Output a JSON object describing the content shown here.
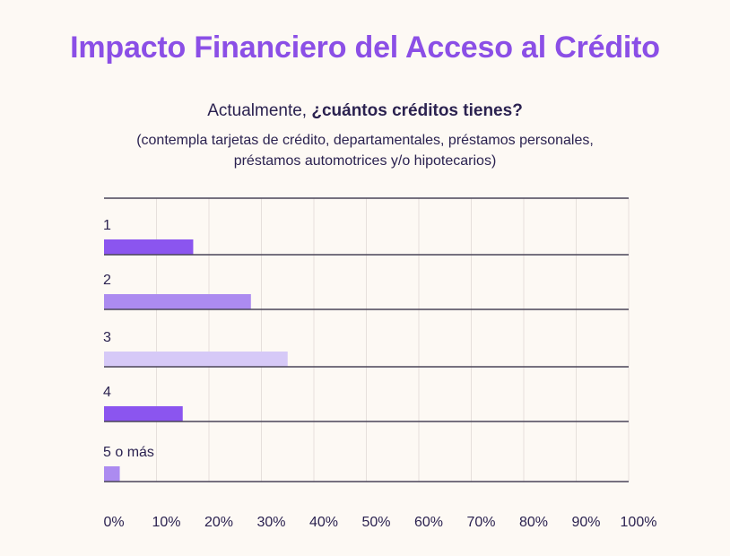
{
  "title": "Impacto Financiero del Acceso al Crédito",
  "question": {
    "prefix": "Actualmente, ",
    "bold": "¿cuántos créditos tienes?"
  },
  "note": "(contempla tarjetas de crédito, departamentales, préstamos personales, préstamos automotrices y/o hipotecarios)",
  "colors": {
    "title": "#8b4fe6",
    "text": "#2b2250",
    "bar_dark": "#8b55ef",
    "bar_mid": "#ac8bf0",
    "bar_light": "#d6c9f7",
    "line": "#4a4458",
    "grid": "#e6e0dc"
  },
  "chart_data": {
    "type": "bar",
    "orientation": "horizontal",
    "categories": [
      "1",
      "2",
      "3",
      "4",
      "5 o más"
    ],
    "values": [
      17,
      28,
      35,
      15,
      3
    ],
    "unit": "%",
    "xlim": [
      0,
      100
    ],
    "x_ticks": [
      "0%",
      "10%",
      "20%",
      "30%",
      "40%",
      "50%",
      "60%",
      "70%",
      "80%",
      "90%",
      "100%"
    ],
    "bar_colors": [
      "#8b55ef",
      "#ac8bf0",
      "#d6c9f7",
      "#8b55ef",
      "#ac8bf0"
    ],
    "grid": true
  }
}
